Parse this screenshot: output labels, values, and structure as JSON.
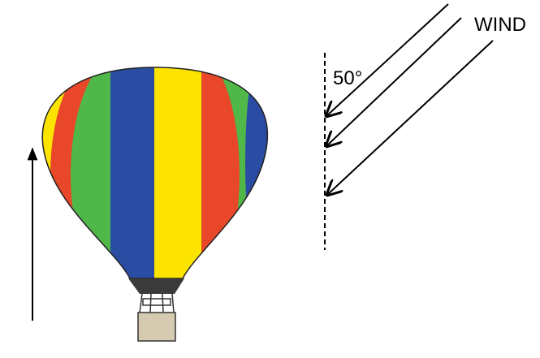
{
  "labels": {
    "angle": "50°",
    "wind": "WIND"
  }
}
